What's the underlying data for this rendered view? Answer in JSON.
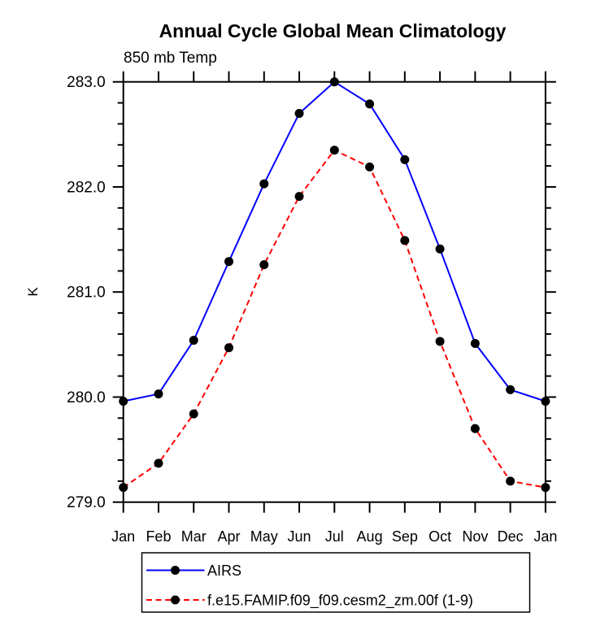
{
  "chart_data": {
    "type": "line",
    "title": "Annual Cycle Global Mean Climatology",
    "subtitle": "850 mb Temp",
    "ylabel": "K",
    "categories": [
      "Jan",
      "Feb",
      "Mar",
      "Apr",
      "May",
      "Jun",
      "Jul",
      "Aug",
      "Sep",
      "Oct",
      "Nov",
      "Dec",
      "Jan"
    ],
    "ylim": [
      279.0,
      283.0
    ],
    "ytick_major": [
      279.0,
      280.0,
      281.0,
      282.0,
      283.0
    ],
    "ytick_labels": [
      "279.0",
      "280.0",
      "281.0",
      "282.0",
      "283.0"
    ],
    "ytick_minor_step": 0.2,
    "grid": false,
    "background_color": "#ffffff",
    "axis_color": "#000000",
    "marker_color": "#000000",
    "legend_position": "bottom",
    "series": [
      {
        "name": "AIRS",
        "color": "#0000ff",
        "line_style": "solid",
        "marker": "filled-circle",
        "values": [
          279.96,
          280.03,
          280.54,
          281.29,
          282.03,
          282.7,
          283.0,
          282.79,
          282.26,
          281.41,
          280.51,
          280.07,
          279.96
        ]
      },
      {
        "name": "f.e15.FAMIP.f09_f09.cesm2_zm.00f (1-9)",
        "color": "#ff0000",
        "line_style": "dashed",
        "marker": "filled-circle",
        "values": [
          279.14,
          279.37,
          279.84,
          280.47,
          281.26,
          281.91,
          282.35,
          282.19,
          281.49,
          280.53,
          279.7,
          279.2,
          279.14
        ]
      }
    ]
  }
}
